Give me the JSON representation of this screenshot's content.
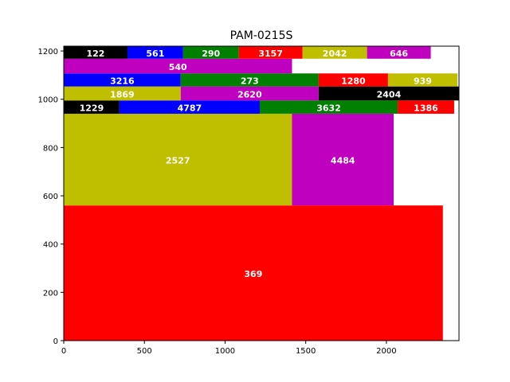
{
  "chart_data": {
    "type": "treemap",
    "title": "PAM-0215S",
    "xlabel": "",
    "ylabel": "",
    "xlim": [
      0,
      2450
    ],
    "ylim": [
      0,
      1220
    ],
    "xticks": [
      0,
      500,
      1000,
      1500,
      2000
    ],
    "yticks": [
      0,
      200,
      400,
      600,
      800,
      1000,
      1200
    ],
    "grid": false,
    "colors": {
      "red": "#ff0000",
      "olive": "#bfbf00",
      "magenta": "#bf00bf",
      "black": "#000000",
      "blue": "#0000ff",
      "green": "#008000"
    },
    "rects": [
      {
        "label": "369",
        "x0": 0,
        "x1": 2350,
        "y0": 0,
        "y1": 560,
        "color": "red"
      },
      {
        "label": "2527",
        "x0": 0,
        "x1": 1415,
        "y0": 560,
        "y1": 940,
        "color": "olive"
      },
      {
        "label": "4484",
        "x0": 1415,
        "x1": 2045,
        "y0": 560,
        "y1": 940,
        "color": "magenta"
      },
      {
        "label": "1229",
        "x0": 0,
        "x1": 345,
        "y0": 940,
        "y1": 995,
        "color": "black"
      },
      {
        "label": "4787",
        "x0": 345,
        "x1": 1215,
        "y0": 940,
        "y1": 995,
        "color": "blue"
      },
      {
        "label": "3632",
        "x0": 1215,
        "x1": 2070,
        "y0": 940,
        "y1": 995,
        "color": "green"
      },
      {
        "label": "1386",
        "x0": 2070,
        "x1": 2420,
        "y0": 940,
        "y1": 995,
        "color": "red"
      },
      {
        "label": "1869",
        "x0": 0,
        "x1": 725,
        "y0": 995,
        "y1": 1053,
        "color": "olive"
      },
      {
        "label": "2620",
        "x0": 725,
        "x1": 1580,
        "y0": 995,
        "y1": 1053,
        "color": "magenta"
      },
      {
        "label": "2404",
        "x0": 1580,
        "x1": 2450,
        "y0": 995,
        "y1": 1053,
        "color": "black"
      },
      {
        "label": "3216",
        "x0": 0,
        "x1": 725,
        "y0": 1053,
        "y1": 1107,
        "color": "blue"
      },
      {
        "label": "273",
        "x0": 725,
        "x1": 1580,
        "y0": 1053,
        "y1": 1107,
        "color": "green"
      },
      {
        "label": "1280",
        "x0": 1580,
        "x1": 2010,
        "y0": 1053,
        "y1": 1107,
        "color": "red"
      },
      {
        "label": "939",
        "x0": 2010,
        "x1": 2440,
        "y0": 1053,
        "y1": 1107,
        "color": "olive"
      },
      {
        "label": "540",
        "x0": 0,
        "x1": 1415,
        "y0": 1107,
        "y1": 1168,
        "color": "magenta"
      },
      {
        "label": "122",
        "x0": 0,
        "x1": 395,
        "y0": 1168,
        "y1": 1220,
        "color": "black"
      },
      {
        "label": "561",
        "x0": 395,
        "x1": 740,
        "y0": 1168,
        "y1": 1220,
        "color": "blue"
      },
      {
        "label": "290",
        "x0": 740,
        "x1": 1085,
        "y0": 1168,
        "y1": 1220,
        "color": "green"
      },
      {
        "label": "3157",
        "x0": 1085,
        "x1": 1480,
        "y0": 1168,
        "y1": 1220,
        "color": "red"
      },
      {
        "label": "2042",
        "x0": 1480,
        "x1": 1880,
        "y0": 1168,
        "y1": 1220,
        "color": "olive"
      },
      {
        "label": "646",
        "x0": 1880,
        "x1": 2275,
        "y0": 1168,
        "y1": 1220,
        "color": "magenta"
      }
    ]
  }
}
